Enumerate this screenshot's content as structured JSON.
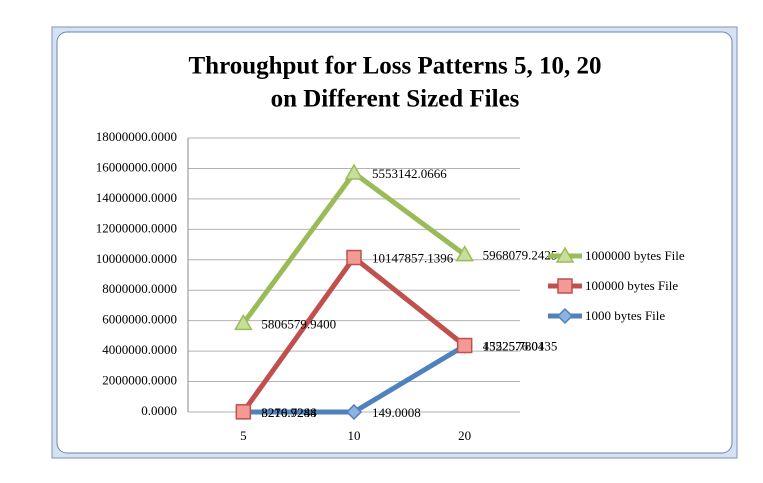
{
  "chart_data": {
    "type": "line",
    "stacked": true,
    "title": [
      "Throughput for Loss Patterns 5, 10, 20",
      "on Different Sized Files"
    ],
    "categories": [
      "5",
      "10",
      "20"
    ],
    "series": [
      {
        "name": "1000 bytes File",
        "color": "#4f81bd",
        "marker": "diamond",
        "values": [
          3210.9244,
          149.0008,
          4352576.0135
        ],
        "value_labels": [
          "3210.9244",
          "149.0008",
          "4352576.0135"
        ]
      },
      {
        "name": "100000 bytes File",
        "color": "#c0504d",
        "marker": "square",
        "values": [
          8276.7288,
          10147857.1396,
          15225.7804
        ],
        "value_labels": [
          "8276.7288",
          "10147857.1396",
          "15225.7804"
        ]
      },
      {
        "name": "1000000 bytes File",
        "color": "#9bbb59",
        "marker": "triangle",
        "values": [
          5806579.94,
          5553142.0666,
          5968079.2425
        ],
        "value_labels": [
          "5806579.9400",
          "5553142.0666",
          "5968079.2425"
        ]
      }
    ],
    "ylim": [
      0,
      18000000
    ],
    "yticks": [
      {
        "value": 0,
        "label": "0.0000"
      },
      {
        "value": 2000000,
        "label": "2000000.0000"
      },
      {
        "value": 4000000,
        "label": "4000000.0000"
      },
      {
        "value": 6000000,
        "label": "6000000.0000"
      },
      {
        "value": 8000000,
        "label": "8000000.0000"
      },
      {
        "value": 10000000,
        "label": "10000000.0000"
      },
      {
        "value": 12000000,
        "label": "12000000.0000"
      },
      {
        "value": 14000000,
        "label": "14000000.0000"
      },
      {
        "value": 16000000,
        "label": "16000000.0000"
      },
      {
        "value": 18000000,
        "label": "18000000.0000"
      }
    ],
    "grid": true,
    "legend": "right"
  }
}
